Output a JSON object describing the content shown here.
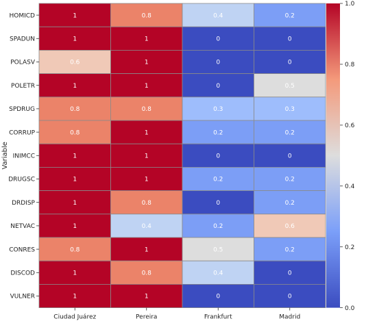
{
  "chart_data": {
    "type": "heatmap",
    "ylabel": "Variable",
    "xlabel": "",
    "columns": [
      "Ciudad Juárez",
      "Pereira",
      "Frankfurt",
      "Madrid"
    ],
    "rows": [
      "HOMICD",
      "SPADUN",
      "POLASV",
      "POLETR",
      "SPDRUG",
      "CORRUP",
      "INIMCC",
      "DRUGSC",
      "DRDISP",
      "NETVAC",
      "CONRES",
      "DISCOD",
      "VULNER"
    ],
    "values": [
      [
        1,
        0.8,
        0.4,
        0.2
      ],
      [
        1,
        1,
        0,
        0
      ],
      [
        0.6,
        1,
        0,
        0
      ],
      [
        1,
        1,
        0,
        0.5
      ],
      [
        0.8,
        0.8,
        0.3,
        0.3
      ],
      [
        0.8,
        1,
        0.2,
        0.2
      ],
      [
        1,
        1,
        0,
        0
      ],
      [
        1,
        1,
        0.2,
        0.2
      ],
      [
        1,
        0.8,
        0,
        0.2
      ],
      [
        1,
        0.4,
        0.2,
        0.6
      ],
      [
        0.8,
        1,
        0.5,
        0.2
      ],
      [
        1,
        0.8,
        0.4,
        0
      ],
      [
        1,
        1,
        0,
        0
      ]
    ],
    "colorbar": {
      "colormap": "coolwarm",
      "range": [
        0,
        1
      ],
      "ticks": [
        "0.0",
        "0.2",
        "0.4",
        "0.6",
        "0.8",
        "1.0"
      ]
    }
  }
}
